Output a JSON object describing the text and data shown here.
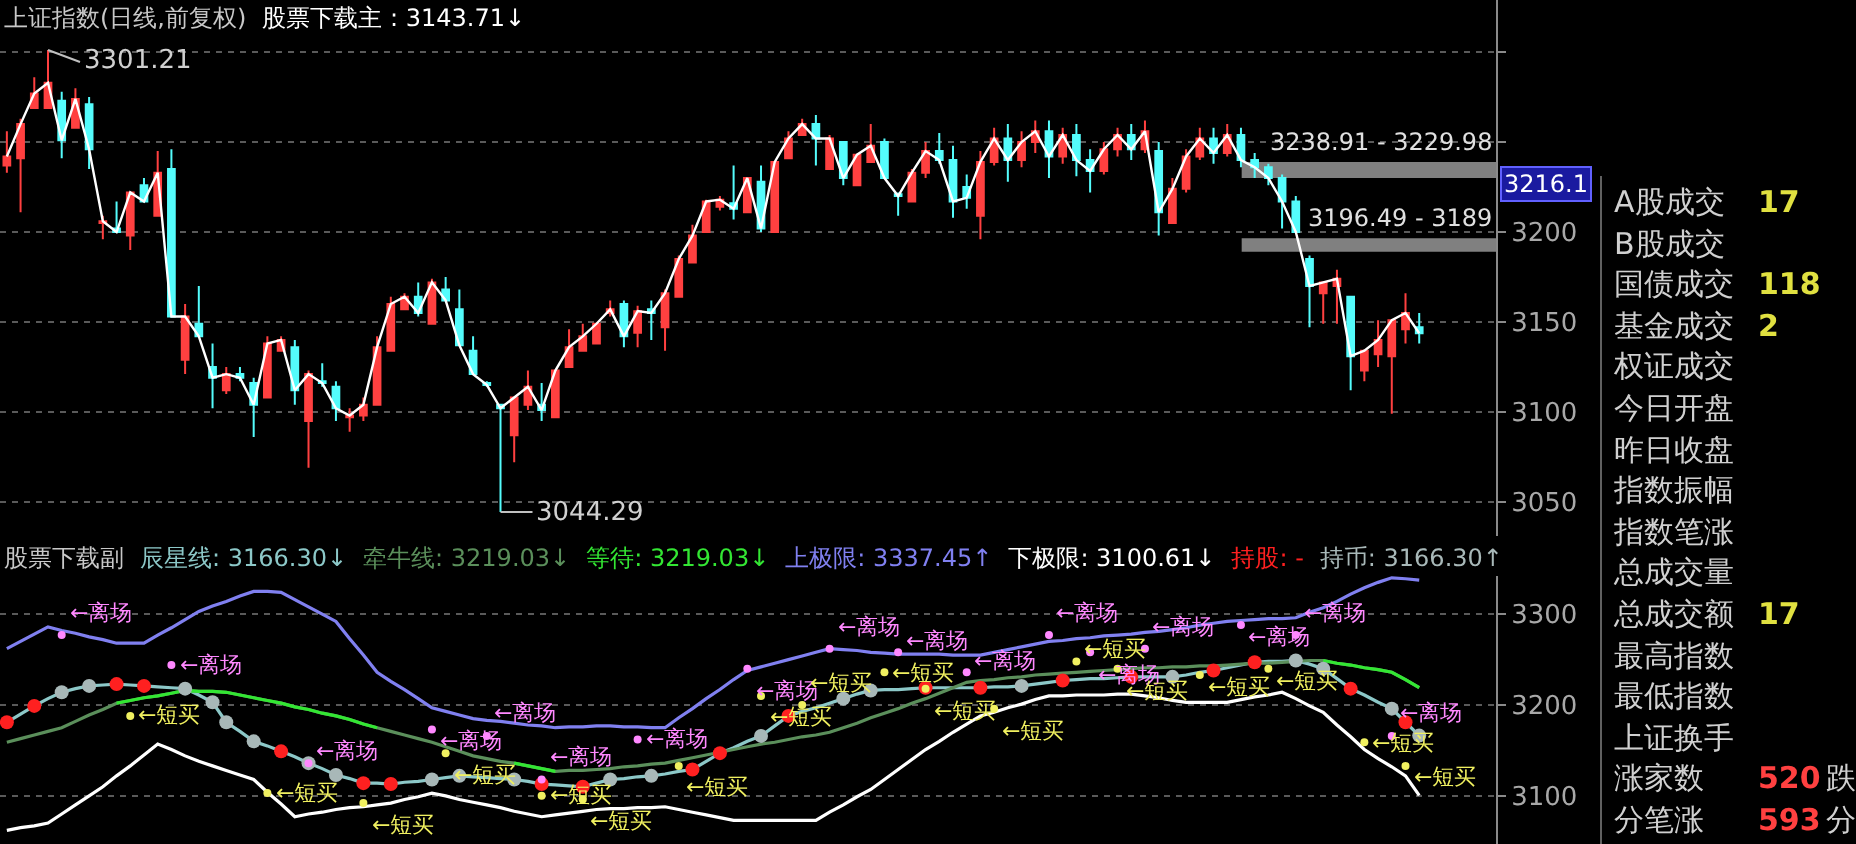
{
  "chart_data": [
    {
      "type": "candlestick",
      "title": "上证指数(日线,前复权)",
      "tick_labels": "y",
      "grid": "y",
      "ylim": [
        3031,
        3329
      ],
      "yticks": [
        3050,
        3100,
        3150,
        3200,
        {
          "value": 3250,
          "label": null
        },
        {
          "value": 3300,
          "label": null
        }
      ],
      "categories": [
        null,
        null,
        null,
        null,
        null,
        null,
        null,
        null,
        null,
        null,
        null,
        null,
        null,
        null,
        null,
        null,
        null,
        null,
        null,
        null,
        null,
        null,
        null,
        null,
        null,
        null,
        null,
        null,
        null,
        null,
        null,
        null,
        null,
        null,
        null,
        null,
        null,
        null,
        null,
        null,
        null,
        null,
        null,
        null,
        null,
        null,
        null,
        null,
        null,
        null,
        null,
        null,
        null,
        null,
        null,
        null,
        null,
        null,
        null,
        null,
        null,
        null,
        null,
        null,
        null,
        null,
        null,
        null,
        null,
        null,
        null,
        null,
        null,
        null,
        null,
        null,
        null,
        null,
        null,
        null,
        null,
        null,
        null,
        null,
        null,
        null,
        null,
        null,
        null,
        null,
        null,
        null,
        null,
        null,
        null,
        null,
        null,
        null,
        null,
        null,
        null,
        null,
        null,
        null
      ],
      "colors": [
        "#ff4040",
        "#ff4040",
        "#ff4040",
        "#ff4040",
        "#54fcfc",
        "#ff4040",
        "#54fcfc",
        "#ff4040",
        "#54fcfc",
        "#ff4040",
        "#54fcfc",
        "#ff4040",
        "#54fcfc",
        "#ff4040",
        "#54fcfc",
        "#54fcfc",
        "#ff4040",
        "#54fcfc",
        "#54fcfc",
        "#ff4040",
        "#ff4040",
        "#54fcfc",
        "#ff4040",
        "#54fcfc",
        "#54fcfc",
        "#ff4040",
        "#ff4040",
        "#ff4040",
        "#ff4040",
        "#ff4040",
        "#54fcfc",
        "#ff4040",
        "#54fcfc",
        "#54fcfc",
        "#54fcfc",
        "#54fcfc",
        "#54fcfc",
        "#ff4040",
        "#ff4040",
        "#54fcfc",
        "#ff4040",
        "#ff4040",
        "#ff4040",
        "#ff4040",
        "#ff4040",
        "#54fcfc",
        "#ff4040",
        "#54fcfc",
        "#ff4040",
        "#ff4040",
        "#ff4040",
        "#ff4040",
        "#ff4040",
        "#54fcfc",
        "#ff4040",
        "#54fcfc",
        "#ff4040",
        "#ff4040",
        "#ff4040",
        "#54fcfc",
        "#ff4040",
        "#54fcfc",
        "#ff4040",
        "#ff4040",
        "#54fcfc",
        "#54fcfc",
        "#ff4040",
        "#ff4040",
        "#54fcfc",
        "#54fcfc",
        "#54fcfc",
        "#ff4040",
        "#ff4040",
        "#54fcfc",
        "#ff4040",
        "#ff4040",
        "#54fcfc",
        "#ff4040",
        "#54fcfc",
        "#54fcfc",
        "#ff4040",
        "#ff4040",
        "#54fcfc",
        "#ff4040",
        "#54fcfc",
        "#ff4040",
        "#ff4040",
        "#ff4040",
        "#54fcfc",
        "#ff4040",
        "#54fcfc",
        "#54fcfc",
        "#54fcfc",
        "#54fcfc",
        "#54fcfc",
        "#54fcfc",
        "#ff4040",
        "#ff4040",
        "#54fcfc",
        "#ff4040",
        "#ff4040",
        "#ff4040",
        "#ff4040",
        "#54fcfc"
      ],
      "ohlc": [
        [
          3237,
          3256,
          3233,
          3242
        ],
        [
          3241,
          3263,
          3211,
          3260
        ],
        [
          3269,
          3286,
          3269,
          3277
        ],
        [
          3269,
          3301.21,
          3269,
          3283
        ],
        [
          3273,
          3278,
          3241,
          3251
        ],
        [
          3258,
          3280,
          3258,
          3274
        ],
        [
          3271,
          3275,
          3235,
          3246
        ],
        [
          3205,
          3209,
          3196,
          3206
        ],
        [
          3202,
          3217,
          3200,
          3200
        ],
        [
          3198,
          3222,
          3190,
          3222
        ],
        [
          3226,
          3230,
          3217,
          3217
        ],
        [
          3209,
          3245,
          3209,
          3233
        ],
        [
          3235,
          3246,
          3153,
          3153
        ],
        [
          3129,
          3160,
          3121,
          3153
        ],
        [
          3149,
          3170,
          3142,
          3142
        ],
        [
          3125,
          3138,
          3102,
          3119
        ],
        [
          3112,
          3125,
          3110,
          3121
        ],
        [
          3121,
          3125,
          3117,
          3119
        ],
        [
          3116,
          3119,
          3086,
          3104
        ],
        [
          3108,
          3142,
          3108,
          3138
        ],
        [
          3134,
          3142,
          3134,
          3140
        ],
        [
          3136,
          3140,
          3104,
          3112
        ],
        [
          3095,
          3123,
          3069,
          3121
        ],
        [
          3117,
          3127,
          3114,
          3116
        ],
        [
          3114,
          3117,
          3095,
          3102
        ],
        [
          3097,
          3102,
          3089,
          3098
        ],
        [
          3098,
          3108,
          3095,
          3104
        ],
        [
          3104,
          3142,
          3104,
          3136
        ],
        [
          3134,
          3164,
          3134,
          3160
        ],
        [
          3157,
          3166,
          3157,
          3164
        ],
        [
          3164,
          3172,
          3153,
          3155
        ],
        [
          3149,
          3174,
          3149,
          3172
        ],
        [
          3168,
          3175,
          3162,
          3162
        ],
        [
          3157,
          3168,
          3137,
          3137
        ],
        [
          3134,
          3142,
          3121,
          3121
        ],
        [
          3116,
          3117,
          3114,
          3115
        ],
        [
          3104,
          3104,
          3044.29,
          3102
        ],
        [
          3087,
          3108,
          3072,
          3108
        ],
        [
          3104,
          3123,
          3101,
          3114
        ],
        [
          3104,
          3116,
          3095,
          3101
        ],
        [
          3097,
          3123,
          3097,
          3123
        ],
        [
          3125,
          3146,
          3125,
          3136
        ],
        [
          3134,
          3149,
          3134,
          3142
        ],
        [
          3138,
          3149,
          3138,
          3149
        ],
        [
          3155,
          3162,
          3153,
          3157
        ],
        [
          3160,
          3162,
          3136,
          3142
        ],
        [
          3144,
          3159,
          3136,
          3156
        ],
        [
          3157,
          3162,
          3140,
          3155
        ],
        [
          3147,
          3168,
          3134,
          3166
        ],
        [
          3164,
          3187,
          3164,
          3185
        ],
        [
          3183,
          3204,
          3183,
          3198
        ],
        [
          3200,
          3218,
          3200,
          3217
        ],
        [
          3214,
          3220,
          3212,
          3218
        ],
        [
          3216,
          3237,
          3207,
          3213
        ],
        [
          3211,
          3230,
          3211,
          3230
        ],
        [
          3228,
          3237,
          3200,
          3202
        ],
        [
          3200,
          3239,
          3200,
          3239
        ],
        [
          3241,
          3256,
          3241,
          3252
        ],
        [
          3254,
          3263,
          3254,
          3260
        ],
        [
          3260,
          3265,
          3237,
          3252
        ],
        [
          3235,
          3254,
          3235,
          3252
        ],
        [
          3250,
          3250,
          3226,
          3230
        ],
        [
          3226,
          3243,
          3226,
          3243
        ],
        [
          3239,
          3260,
          3239,
          3248
        ],
        [
          3250,
          3252,
          3230,
          3230
        ],
        [
          3221,
          3222,
          3209,
          3220
        ],
        [
          3217,
          3235,
          3217,
          3233
        ],
        [
          3233,
          3250,
          3230,
          3245
        ],
        [
          3245,
          3255,
          3238,
          3240
        ],
        [
          3240,
          3248,
          3208,
          3217
        ],
        [
          3225,
          3232,
          3213,
          3219
        ],
        [
          3209,
          3245,
          3196,
          3239
        ],
        [
          3239,
          3258,
          3237,
          3252
        ],
        [
          3252,
          3260,
          3228,
          3240
        ],
        [
          3240,
          3256,
          3236,
          3250
        ],
        [
          3250,
          3262,
          3244,
          3256
        ],
        [
          3256,
          3262,
          3230,
          3242
        ],
        [
          3242,
          3258,
          3238,
          3254
        ],
        [
          3254,
          3260,
          3231,
          3240
        ],
        [
          3240,
          3246,
          3222,
          3234
        ],
        [
          3234,
          3250,
          3232,
          3246
        ],
        [
          3246,
          3258,
          3242,
          3254
        ],
        [
          3254,
          3260,
          3240,
          3246
        ],
        [
          3246,
          3262,
          3244,
          3256
        ],
        [
          3245,
          3250,
          3198,
          3211
        ],
        [
          3205,
          3230,
          3205,
          3224
        ],
        [
          3224,
          3246,
          3222,
          3242
        ],
        [
          3242,
          3258,
          3240,
          3252
        ],
        [
          3252,
          3258,
          3238,
          3244
        ],
        [
          3244,
          3260,
          3242,
          3254
        ],
        [
          3254,
          3258,
          3236,
          3240
        ],
        [
          3240,
          3244,
          3230,
          3236
        ],
        [
          3236,
          3238,
          3226,
          3230
        ],
        [
          3230,
          3232,
          3202,
          3217
        ],
        [
          3217,
          3220,
          3200,
          3200
        ],
        [
          3185,
          3187,
          3147,
          3170
        ],
        [
          3166,
          3172,
          3149,
          3172
        ],
        [
          3170,
          3179,
          3149,
          3174
        ],
        [
          3164,
          3164,
          3112,
          3131
        ],
        [
          3123,
          3134,
          3117,
          3134
        ],
        [
          3132,
          3151,
          3125,
          3140
        ],
        [
          3131,
          3151,
          3099,
          3151
        ],
        [
          3146,
          3166,
          3138,
          3155
        ],
        [
          3147,
          3155,
          3138,
          3143.71
        ]
      ],
      "series": [
        {
          "type": "line",
          "name": "股票下载主 : 3143.71↓",
          "color": "#ffffff",
          "values": [
            3242,
            3260,
            3277,
            3283,
            3251,
            3274,
            3246,
            3206,
            3200,
            3222,
            3217,
            3233,
            3153,
            3153,
            3142,
            3119,
            3121,
            3119,
            3104,
            3138,
            3140,
            3112,
            3121,
            3116,
            3102,
            3098,
            3104,
            3136,
            3160,
            3164,
            3155,
            3172,
            3162,
            3137,
            3121,
            3115,
            3102,
            3108,
            3114,
            3101,
            3123,
            3136,
            3142,
            3149,
            3157,
            3142,
            3156,
            3155,
            3166,
            3185,
            3198,
            3217,
            3218,
            3213,
            3230,
            3202,
            3239,
            3252,
            3260,
            3252,
            3252,
            3230,
            3243,
            3248,
            3230,
            3220,
            3233,
            3245,
            3240,
            3217,
            3219,
            3239,
            3252,
            3240,
            3250,
            3256,
            3242,
            3254,
            3240,
            3234,
            3246,
            3254,
            3246,
            3256,
            3211,
            3224,
            3242,
            3252,
            3244,
            3254,
            3240,
            3236,
            3230,
            3217,
            3200,
            3170,
            3172,
            3174,
            3131,
            3134,
            3140,
            3151,
            3155,
            3143.71
          ]
        }
      ],
      "bands": [
        {
          "axis": "y",
          "from": 3189,
          "to": 3196.49,
          "label": "3196.49 - 3189",
          "color": "#808080"
        },
        {
          "axis": "y",
          "from": 3229.98,
          "to": 3238.91,
          "label": "3238.91 - 3229.98",
          "color": "#808080"
        }
      ],
      "annotations": [
        "3301.21",
        "3044.29",
        "3216.1"
      ]
    },
    {
      "type": "line",
      "title": "股票下载副",
      "tick_labels": "y",
      "grid": "y",
      "ylim": [
        3047,
        3342
      ],
      "yticks": [
        3100,
        3200,
        3300
      ],
      "categories": [
        null,
        null,
        null,
        null,
        null,
        null,
        null,
        null,
        null,
        null,
        null,
        null,
        null,
        null,
        null,
        null,
        null,
        null,
        null,
        null,
        null,
        null,
        null,
        null,
        null,
        null,
        null,
        null,
        null,
        null,
        null,
        null,
        null,
        null,
        null,
        null,
        null,
        null,
        null,
        null,
        null,
        null,
        null,
        null,
        null,
        null,
        null,
        null,
        null,
        null,
        null,
        null,
        null,
        null,
        null,
        null,
        null,
        null,
        null,
        null,
        null,
        null,
        null,
        null,
        null,
        null,
        null,
        null,
        null,
        null,
        null,
        null,
        null,
        null,
        null,
        null,
        null,
        null,
        null,
        null,
        null,
        null,
        null,
        null,
        null,
        null,
        null,
        null,
        null,
        null,
        null,
        null,
        null,
        null,
        null,
        null,
        null,
        null,
        null,
        null,
        null,
        null,
        null,
        null
      ],
      "series": [
        {
          "name": "辰星线: 3166.30↓",
          "color": "#8cc8c8",
          "values": [
            3181,
            3190,
            3199,
            3207,
            3214,
            3218,
            3221,
            3222,
            3223,
            3222,
            3221,
            3220,
            3219,
            3218,
            3211,
            3203,
            3181,
            3171,
            3160,
            3155,
            3149,
            3143,
            3136,
            3130,
            3123,
            3119,
            3114,
            3114,
            3113,
            3115,
            3116,
            3118,
            3120,
            3122,
            3121,
            3120,
            3119,
            3118,
            3116,
            3113,
            3112,
            3111,
            3110,
            3114,
            3118,
            3119,
            3121,
            3122,
            3124,
            3127,
            3129,
            3138,
            3147,
            3153,
            3160,
            3166,
            3177,
            3188,
            3193,
            3197,
            3202,
            3207,
            3212,
            3216,
            3217,
            3217,
            3218,
            3219,
            3219,
            3219,
            3219,
            3219,
            3220,
            3220,
            3221,
            3223,
            3225,
            3227,
            3228,
            3229,
            3229,
            3230,
            3231,
            3231,
            3231,
            3231,
            3233,
            3236,
            3238,
            3241,
            3244,
            3247,
            3248,
            3248,
            3249,
            3245,
            3240,
            3229,
            3218,
            3211,
            3203,
            3196,
            3181,
            3166.3
          ]
        },
        {
          "name": "牵牛线: 3219.03↓",
          "color": "#5b8f5b",
          "values": [
            3159,
            3163,
            3167,
            3171,
            3175,
            3182,
            3189,
            3195,
            3202,
            3205,
            3208,
            3210,
            3213,
            3216,
            3215,
            3215,
            3214,
            3211,
            3208,
            3205,
            3202,
            3198,
            3195,
            3191,
            3188,
            3184,
            3179,
            3175,
            3171,
            3167,
            3163,
            3159,
            3154,
            3149,
            3144,
            3141,
            3138,
            3136,
            3133,
            3130,
            3127,
            3128,
            3128,
            3129,
            3130,
            3132,
            3133,
            3135,
            3136,
            3139,
            3142,
            3145,
            3148,
            3151,
            3154,
            3157,
            3159,
            3162,
            3165,
            3167,
            3170,
            3175,
            3180,
            3186,
            3191,
            3196,
            3202,
            3207,
            3213,
            3219,
            3225,
            3227,
            3228,
            3230,
            3231,
            3233,
            3234,
            3235,
            3236,
            3237,
            3238,
            3239,
            3240,
            3241,
            3241,
            3242,
            3242,
            3243,
            3243,
            3244,
            3245,
            3246,
            3246,
            3247,
            3248,
            3249,
            3249,
            3246,
            3244,
            3241,
            3239,
            3236,
            3228,
            3219.03
          ]
        },
        {
          "name": "等待: 3219.03↓",
          "color": "#33e633",
          "values": [
            null,
            null,
            null,
            null,
            null,
            null,
            null,
            null,
            3202,
            3205,
            3208,
            3210,
            3213,
            3216,
            3215,
            3215,
            3214,
            3211,
            3208,
            3205,
            3202,
            3198,
            3195,
            3191,
            3188,
            3184,
            3179,
            3175,
            null,
            null,
            null,
            null,
            null,
            null,
            null,
            null,
            null,
            3136,
            3133,
            3130,
            3127,
            null,
            null,
            null,
            null,
            null,
            null,
            null,
            null,
            null,
            null,
            null,
            null,
            null,
            null,
            null,
            null,
            null,
            null,
            null,
            null,
            null,
            null,
            null,
            null,
            null,
            null,
            null,
            null,
            null,
            null,
            null,
            null,
            null,
            null,
            null,
            null,
            null,
            null,
            null,
            null,
            null,
            null,
            null,
            null,
            null,
            null,
            null,
            null,
            null,
            null,
            null,
            null,
            null,
            null,
            null,
            3249,
            3246,
            3244,
            3241,
            3239,
            3236,
            3228,
            3219.03
          ]
        },
        {
          "name": "上极限: 3337.45↑",
          "color": "#8080f0",
          "values": [
            3262,
            3270,
            3278,
            3286,
            3282,
            3279,
            3275,
            3272,
            3268,
            3268,
            3268,
            3277,
            3285,
            3294,
            3303,
            3309,
            3314,
            3320,
            3325,
            3325,
            3324,
            3316,
            3308,
            3300,
            3292,
            3273,
            3255,
            3236,
            3226,
            3217,
            3207,
            3197,
            3193,
            3189,
            3185,
            3183,
            3182,
            3180,
            3178,
            3177,
            3175,
            3176,
            3176,
            3177,
            3177,
            3176,
            3176,
            3175,
            3175,
            3186,
            3196,
            3207,
            3217,
            3228,
            3238,
            3242,
            3246,
            3250,
            3254,
            3258,
            3262,
            3261,
            3260,
            3258,
            3257,
            3256,
            3256,
            3256,
            3256,
            3255,
            3255,
            3255,
            3258,
            3261,
            3264,
            3267,
            3270,
            3271,
            3273,
            3274,
            3276,
            3277,
            3278,
            3280,
            3281,
            3283,
            3285,
            3288,
            3290,
            3292,
            3293,
            3294,
            3295,
            3295,
            3296,
            3302,
            3307,
            3314,
            3322,
            3329,
            3335,
            3340,
            3339,
            3337.45
          ]
        },
        {
          "name": "下极限: 3100.61↓",
          "color": "#ffffff",
          "values": [
            3062,
            3065,
            3067,
            3070,
            3080,
            3090,
            3100,
            3110,
            3122,
            3133,
            3145,
            3157,
            3151,
            3144,
            3138,
            3133,
            3128,
            3123,
            3118,
            3104,
            3091,
            3077,
            3080,
            3082,
            3085,
            3087,
            3088,
            3090,
            3092,
            3096,
            3099,
            3103,
            3100,
            3096,
            3093,
            3090,
            3087,
            3083,
            3080,
            3077,
            3079,
            3081,
            3083,
            3085,
            3086,
            3086,
            3087,
            3087,
            3088,
            3085,
            3082,
            3079,
            3076,
            3073,
            3073,
            3073,
            3073,
            3073,
            3073,
            3073,
            3082,
            3090,
            3099,
            3107,
            3118,
            3129,
            3140,
            3151,
            3160,
            3170,
            3179,
            3188,
            3192,
            3197,
            3201,
            3206,
            3210,
            3210,
            3211,
            3211,
            3211,
            3212,
            3212,
            3210,
            3208,
            3205,
            3203,
            3203,
            3203,
            3203,
            3206,
            3209,
            3211,
            3214,
            3207,
            3199,
            3192,
            3178,
            3165,
            3151,
            3141,
            3132,
            3122,
            3100.61
          ]
        },
        {
          "type": "scatter",
          "marker": "circle",
          "name": "持股: -",
          "color": "#ff2020",
          "values": [
            3181,
            null,
            3199,
            null,
            null,
            null,
            null,
            null,
            3223,
            null,
            3221,
            null,
            null,
            null,
            null,
            null,
            null,
            null,
            null,
            null,
            3149,
            null,
            null,
            null,
            null,
            null,
            3114,
            null,
            3113,
            null,
            null,
            null,
            null,
            null,
            null,
            null,
            null,
            null,
            null,
            3113,
            null,
            null,
            3110,
            null,
            null,
            null,
            null,
            null,
            null,
            null,
            3129,
            null,
            3147,
            null,
            null,
            null,
            null,
            3188,
            null,
            null,
            null,
            null,
            null,
            null,
            null,
            null,
            null,
            3219,
            null,
            null,
            null,
            3219,
            null,
            null,
            null,
            null,
            null,
            3227,
            null,
            null,
            null,
            null,
            3231,
            null,
            null,
            null,
            null,
            null,
            3238,
            null,
            null,
            3247,
            null,
            null,
            null,
            null,
            null,
            null,
            3218,
            null,
            null,
            null,
            3181,
            null
          ]
        },
        {
          "type": "scatter",
          "marker": "circle",
          "name": "持币: 3166.30↑",
          "color": "#a8b8b8",
          "values": [
            null,
            null,
            null,
            null,
            3214,
            null,
            3221,
            null,
            null,
            null,
            null,
            null,
            null,
            3218,
            null,
            3203,
            3181,
            null,
            3160,
            null,
            null,
            null,
            3136,
            null,
            3123,
            null,
            null,
            null,
            null,
            null,
            null,
            3118,
            null,
            3122,
            null,
            null,
            null,
            3118,
            null,
            null,
            null,
            null,
            null,
            null,
            3118,
            null,
            null,
            3122,
            null,
            null,
            null,
            null,
            null,
            null,
            null,
            3166,
            null,
            null,
            null,
            null,
            null,
            3207,
            null,
            3216,
            null,
            null,
            null,
            null,
            null,
            null,
            null,
            null,
            null,
            null,
            3221,
            null,
            null,
            null,
            null,
            null,
            null,
            null,
            null,
            null,
            null,
            3231,
            null,
            null,
            null,
            null,
            null,
            null,
            null,
            null,
            3249,
            null,
            3240,
            null,
            null,
            null,
            null,
            3196,
            null,
            3166.3
          ]
        },
        {
          "type": "scatter",
          "marker": "circle",
          "color": "#ff88ff",
          "values": [
            null,
            null,
            null,
            null,
            3277,
            null,
            null,
            null,
            null,
            null,
            null,
            null,
            3244,
            null,
            null,
            null,
            null,
            null,
            null,
            null,
            null,
            null,
            3136,
            null,
            null,
            null,
            null,
            null,
            null,
            null,
            null,
            3173,
            null,
            null,
            null,
            3166,
            null,
            null,
            null,
            3118,
            null,
            null,
            null,
            null,
            null,
            null,
            3162,
            null,
            null,
            null,
            null,
            null,
            null,
            null,
            3240,
            null,
            null,
            null,
            null,
            null,
            3262,
            null,
            null,
            null,
            null,
            3258,
            null,
            null,
            null,
            null,
            3236,
            null,
            null,
            null,
            null,
            null,
            3277,
            null,
            null,
            3258,
            null,
            null,
            null,
            3262,
            null,
            null,
            null,
            null,
            null,
            null,
            3288,
            null,
            null,
            null,
            3277,
            null,
            null,
            null,
            null,
            null,
            null,
            3166,
            null,
            null
          ],
          "value_labels": [
            null,
            null,
            null,
            null,
            "←离场",
            null,
            null,
            null,
            null,
            null,
            null,
            null,
            "←离场",
            null,
            null,
            null,
            null,
            null,
            null,
            null,
            null,
            null,
            "←离场",
            null,
            null,
            null,
            null,
            null,
            null,
            null,
            null,
            "←离场",
            null,
            null,
            null,
            "←离场",
            null,
            null,
            null,
            "←离场",
            null,
            null,
            null,
            null,
            null,
            null,
            "←离场",
            null,
            null,
            null,
            null,
            null,
            null,
            null,
            "←离场",
            null,
            null,
            null,
            null,
            null,
            "←离场",
            null,
            null,
            null,
            null,
            "←离场",
            null,
            null,
            null,
            null,
            "←离场",
            null,
            null,
            null,
            null,
            null,
            "←离场",
            null,
            null,
            "←离场",
            null,
            null,
            null,
            "←离场",
            null,
            null,
            null,
            null,
            null,
            null,
            "←离场",
            null,
            null,
            null,
            "←离场",
            null,
            null,
            null,
            null,
            null,
            null,
            "←离场",
            null,
            null
          ]
        },
        {
          "type": "scatter",
          "marker": "circle",
          "color": "#f0f060",
          "values": [
            null,
            null,
            null,
            null,
            null,
            null,
            null,
            null,
            null,
            3188,
            null,
            null,
            null,
            null,
            null,
            null,
            null,
            null,
            null,
            3103,
            null,
            null,
            null,
            null,
            null,
            null,
            3092,
            null,
            null,
            null,
            null,
            null,
            3147,
            null,
            null,
            null,
            null,
            null,
            null,
            3100,
            null,
            null,
            3096,
            null,
            null,
            null,
            null,
            null,
            null,
            3133,
            null,
            null,
            null,
            null,
            null,
            3210,
            null,
            null,
            3200,
            null,
            null,
            null,
            null,
            null,
            3236,
            null,
            null,
            3218,
            null,
            null,
            null,
            null,
            3196,
            null,
            null,
            null,
            null,
            null,
            3248,
            null,
            null,
            3240,
            null,
            null,
            null,
            null,
            null,
            3233,
            null,
            null,
            null,
            null,
            3240,
            null,
            null,
            null,
            null,
            null,
            null,
            3159,
            null,
            null,
            3133,
            null
          ],
          "value_labels": [
            null,
            null,
            null,
            null,
            null,
            null,
            null,
            null,
            null,
            "←短买",
            null,
            null,
            null,
            null,
            null,
            null,
            null,
            null,
            null,
            "←短买",
            null,
            null,
            null,
            null,
            null,
            null,
            "←短买",
            null,
            null,
            null,
            null,
            null,
            "←短买",
            null,
            null,
            null,
            null,
            null,
            null,
            "←短买",
            null,
            null,
            "←短买",
            null,
            null,
            null,
            null,
            null,
            null,
            "←短买",
            null,
            null,
            null,
            null,
            null,
            "←短买",
            null,
            null,
            "←短买",
            null,
            null,
            null,
            null,
            null,
            "←短买",
            null,
            null,
            "←短买",
            null,
            null,
            null,
            null,
            "←短买",
            null,
            null,
            null,
            null,
            null,
            "←短买",
            null,
            null,
            "←短买",
            null,
            null,
            null,
            null,
            null,
            "←短买",
            null,
            null,
            null,
            null,
            "←短买",
            null,
            null,
            null,
            null,
            null,
            null,
            "←短买",
            null,
            null,
            "←短买",
            null
          ]
        }
      ]
    },
    {
      "type": "other",
      "categories": [
        "A股成交",
        "B股成交",
        "国债成交",
        "基金成交",
        "权证成交",
        "今日开盘",
        "昨日收盘",
        "指数振幅",
        "指数笔涨",
        "总成交量",
        "总成交额",
        "最高指数",
        "最低指数",
        "上证换手",
        "涨家数",
        "分笔涨"
      ],
      "value_labels": [
        "17",
        null,
        "118",
        "2",
        null,
        null,
        null,
        null,
        null,
        null,
        "17",
        null,
        null,
        null,
        "520",
        "593"
      ],
      "colors": [
        "#e0e040",
        null,
        "#e0e040",
        "#e0e040",
        null,
        null,
        null,
        null,
        null,
        null,
        "#e0e040",
        null,
        null,
        null,
        "#ff4040",
        "#ff4040"
      ],
      "annotations": [
        "跌",
        "分"
      ]
    }
  ]
}
